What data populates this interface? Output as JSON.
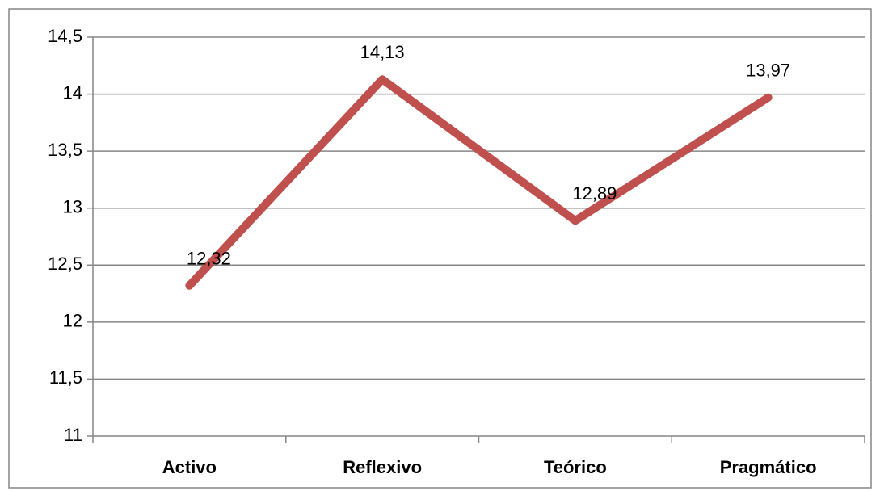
{
  "chart_data": {
    "type": "line",
    "categories": [
      "Activo",
      "Reflexivo",
      "Teórico",
      "Pragmático"
    ],
    "values": [
      12.32,
      14.13,
      12.89,
      13.97
    ],
    "value_labels": [
      "12,32",
      "14,13",
      "12,89",
      "13,97"
    ],
    "color": "#c0504d",
    "ylim": [
      11,
      14.5
    ],
    "yticks": [
      11,
      {
        "value": 11.5,
        "label": "11,5"
      },
      12,
      {
        "value": 12.5,
        "label": "12,5"
      },
      13,
      {
        "value": 13.5,
        "label": "13,5"
      },
      14,
      {
        "value": 14.5,
        "label": "14,5"
      }
    ],
    "grid": true
  }
}
